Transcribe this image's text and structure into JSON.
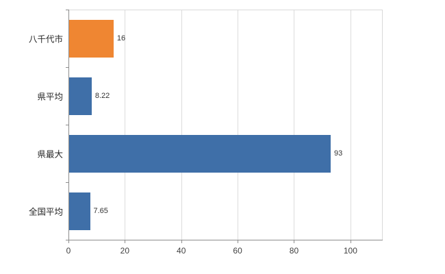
{
  "chart_data": {
    "type": "bar",
    "orientation": "horizontal",
    "title": "",
    "xlabel": "",
    "ylabel": "",
    "categories": [
      "八千代市",
      "県平均",
      "県最大",
      "全国平均"
    ],
    "values": [
      16,
      8.22,
      93,
      7.65
    ],
    "value_labels": [
      "16",
      "8.22",
      "93",
      "7.65"
    ],
    "bar_colors": [
      "#ef8632",
      "#3f6fa8",
      "#3f6fa8",
      "#3f6fa8"
    ],
    "xlim": [
      0,
      111.2
    ],
    "xticks": [
      0,
      20,
      40,
      60,
      80,
      100
    ],
    "xtick_labels": [
      "0",
      "20",
      "40",
      "60",
      "80",
      "100"
    ],
    "grid": true,
    "legend": false
  },
  "colors": {
    "background": "#ffffff",
    "grid": "#dcdcdc",
    "axis": "#8c8c8c",
    "text": "#262626"
  }
}
